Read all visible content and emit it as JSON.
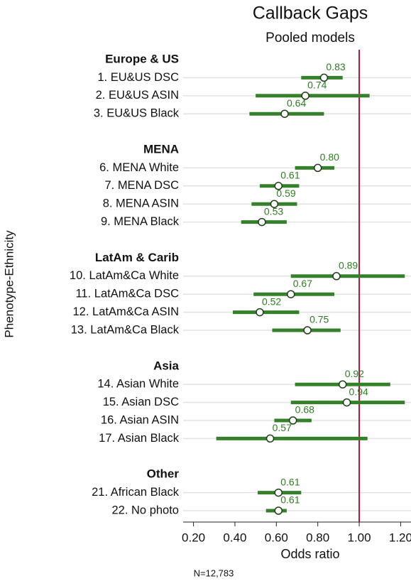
{
  "chart_data": {
    "type": "forest",
    "title": "Callback Gaps",
    "subtitle": "Pooled models",
    "xlabel": "Odds ratio",
    "ylabel": "Phenotype-Ethnicity",
    "note": "N=12,783",
    "color": "#35802a",
    "refline": 1,
    "refline_color": "#b0143c",
    "xlim": [
      0.15,
      1.25
    ],
    "xticks": [
      {
        "value": 0.2,
        "label": "0.20"
      },
      {
        "value": 0.4,
        "label": "0.40"
      },
      {
        "value": 0.6,
        "label": "0.60"
      },
      {
        "value": 0.8,
        "label": "0.80"
      },
      {
        "value": 1,
        "label": "1.00"
      },
      {
        "value": 1.2,
        "label": "1.20"
      }
    ],
    "grid": true,
    "groups": [
      {
        "name": "Europe & US",
        "categories": [
          "1. EU&US DSC",
          "2. EU&US ASIN",
          "3. EU&US Black"
        ],
        "values": [
          0.83,
          0.74,
          0.64
        ],
        "value_labels": [
          "0.83",
          "0.74",
          "0.64"
        ],
        "ci_low": [
          0.72,
          0.5,
          0.47
        ],
        "ci_high": [
          0.92,
          1.05,
          0.83
        ]
      },
      {
        "name": "MENA",
        "categories": [
          "6. MENA White",
          "7. MENA DSC",
          "8. MENA ASIN",
          "9. MENA Black"
        ],
        "values": [
          0.8,
          0.61,
          0.59,
          0.53
        ],
        "value_labels": [
          "0.80",
          "0.61",
          "0.59",
          "0.53"
        ],
        "ci_low": [
          0.69,
          0.52,
          0.48,
          0.43
        ],
        "ci_high": [
          0.88,
          0.71,
          0.7,
          0.65
        ]
      },
      {
        "name": "LatAm & Carib",
        "categories": [
          "10. LatAm&Ca White",
          "11. LatAm&Ca DSC",
          "12. LatAm&Ca ASIN",
          "13. LatAm&Ca Black"
        ],
        "values": [
          0.89,
          0.67,
          0.52,
          0.75
        ],
        "value_labels": [
          "0.89",
          "0.67",
          "0.52",
          "0.75"
        ],
        "ci_low": [
          0.67,
          0.49,
          0.39,
          0.58
        ],
        "ci_high": [
          1.22,
          0.88,
          0.71,
          0.91
        ]
      },
      {
        "name": "Asia",
        "categories": [
          "14. Asian White",
          "15. Asian DSC",
          "16. Asian ASIN",
          "17. Asian Black"
        ],
        "values": [
          0.92,
          0.94,
          0.68,
          0.57
        ],
        "value_labels": [
          "0.92",
          "0.94",
          "0.68",
          "0.57"
        ],
        "ci_low": [
          0.69,
          0.67,
          0.59,
          0.31
        ],
        "ci_high": [
          1.15,
          1.22,
          0.77,
          1.04
        ]
      },
      {
        "name": "Other",
        "categories": [
          "21. African Black",
          "22. No photo"
        ],
        "values": [
          0.61,
          0.61
        ],
        "value_labels": [
          "0.61",
          "0.61"
        ],
        "ci_low": [
          0.51,
          0.55
        ],
        "ci_high": [
          0.72,
          0.65
        ]
      }
    ]
  }
}
